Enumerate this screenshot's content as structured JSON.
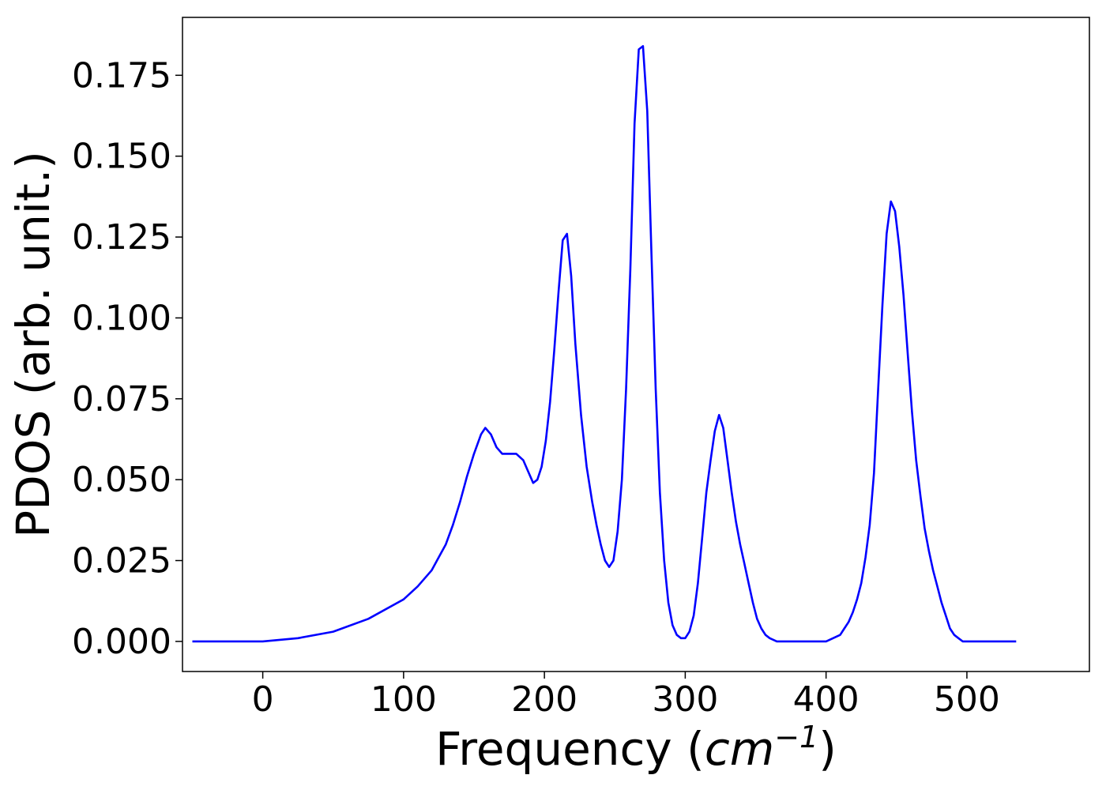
{
  "chart_data": {
    "type": "line",
    "title": "",
    "xlabel_text": "Frequency (",
    "xlabel_math": "cm",
    "xlabel_sup": "−1",
    "xlabel_close": ")",
    "ylabel": "PDOS (arb. unit.)",
    "xlim": [
      -57,
      587
    ],
    "ylim": [
      -0.0093,
      0.1929
    ],
    "x_ticks": [
      0,
      100,
      200,
      300,
      400,
      500
    ],
    "x_tick_labels": [
      "0",
      "100",
      "200",
      "300",
      "400",
      "500"
    ],
    "y_ticks": [
      0.0,
      0.025,
      0.05,
      0.075,
      0.1,
      0.125,
      0.15,
      0.175
    ],
    "y_tick_labels": [
      "0.000",
      "0.025",
      "0.050",
      "0.075",
      "0.100",
      "0.125",
      "0.150",
      "0.175"
    ],
    "grid": false,
    "series": [
      {
        "color": "#0000ff",
        "x": [
          -50,
          0,
          25,
          50,
          75,
          100,
          110,
          120,
          125,
          130,
          135,
          140,
          145,
          150,
          155,
          158,
          162,
          166,
          170,
          175,
          180,
          185,
          188,
          192,
          195,
          198,
          201,
          204,
          207,
          210,
          213,
          216,
          219,
          222,
          226,
          230,
          234,
          237,
          240,
          243,
          246,
          249,
          252,
          255,
          258,
          261,
          264,
          267,
          270,
          273,
          276,
          279,
          282,
          285,
          288,
          291,
          294,
          297,
          300,
          303,
          306,
          309,
          312,
          315,
          318,
          321,
          324,
          327,
          330,
          333,
          336,
          339,
          342,
          345,
          348,
          351,
          354,
          357,
          360,
          365,
          370,
          380,
          395,
          400,
          405,
          410,
          413,
          416,
          419,
          422,
          425,
          428,
          431,
          434,
          437,
          440,
          443,
          446,
          449,
          452,
          455,
          458,
          461,
          464,
          467,
          470,
          473,
          476,
          479,
          482,
          485,
          488,
          491,
          494,
          497,
          500,
          510,
          535
        ],
        "y": [
          0.0,
          0.0,
          0.001,
          0.003,
          0.007,
          0.013,
          0.017,
          0.022,
          0.026,
          0.03,
          0.036,
          0.043,
          0.051,
          0.058,
          0.064,
          0.066,
          0.064,
          0.06,
          0.058,
          0.058,
          0.058,
          0.056,
          0.053,
          0.049,
          0.05,
          0.054,
          0.062,
          0.074,
          0.09,
          0.108,
          0.124,
          0.126,
          0.113,
          0.092,
          0.07,
          0.054,
          0.043,
          0.036,
          0.03,
          0.025,
          0.023,
          0.025,
          0.034,
          0.05,
          0.078,
          0.115,
          0.16,
          0.183,
          0.184,
          0.164,
          0.12,
          0.078,
          0.046,
          0.025,
          0.012,
          0.005,
          0.002,
          0.001,
          0.001,
          0.003,
          0.008,
          0.018,
          0.032,
          0.046,
          0.056,
          0.065,
          0.07,
          0.066,
          0.056,
          0.046,
          0.037,
          0.03,
          0.024,
          0.018,
          0.012,
          0.007,
          0.004,
          0.002,
          0.001,
          0.0,
          0.0,
          0.0,
          0.0,
          0.0,
          0.001,
          0.002,
          0.004,
          0.006,
          0.009,
          0.013,
          0.018,
          0.026,
          0.036,
          0.052,
          0.078,
          0.104,
          0.126,
          0.136,
          0.133,
          0.122,
          0.107,
          0.089,
          0.071,
          0.056,
          0.045,
          0.035,
          0.028,
          0.022,
          0.017,
          0.012,
          0.008,
          0.004,
          0.002,
          0.001,
          0.0,
          0.0,
          0.0,
          0.0
        ]
      }
    ]
  }
}
